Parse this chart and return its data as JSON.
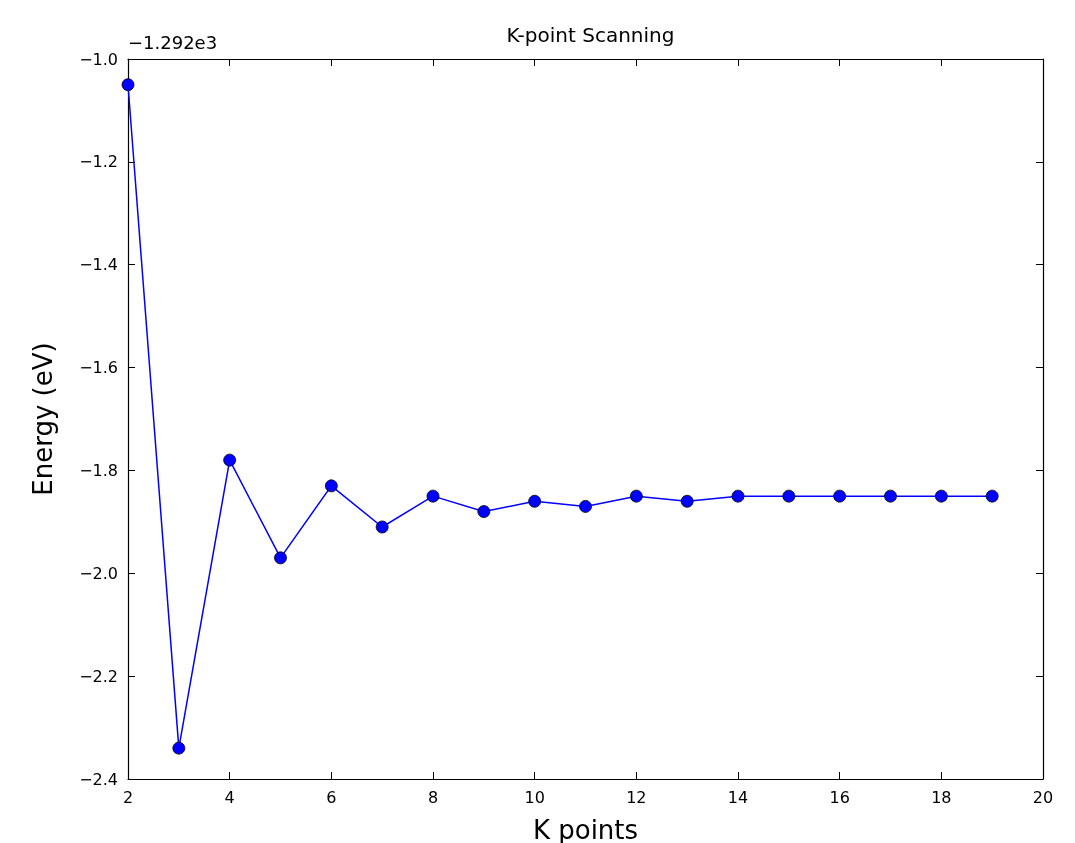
{
  "chart_data": {
    "type": "line",
    "title": "K-point Scanning",
    "xlabel": "K points",
    "ylabel": "Energy (eV)",
    "annotations": [
      "−1.292e3"
    ],
    "x": [
      2,
      3,
      4,
      5,
      6,
      7,
      8,
      9,
      10,
      11,
      12,
      13,
      14,
      15,
      16,
      17,
      18,
      19
    ],
    "series": [
      {
        "color": "#0000ff",
        "values": [
          -1.05,
          -2.34,
          -1.78,
          -1.97,
          -1.83,
          -1.91,
          -1.85,
          -1.88,
          -1.86,
          -1.87,
          -1.85,
          -1.86,
          -1.85,
          -1.85,
          -1.85,
          -1.85,
          -1.85,
          -1.85
        ]
      }
    ],
    "xlim": [
      2,
      20
    ],
    "xticks": [
      2,
      4,
      6,
      8,
      10,
      12,
      14,
      16,
      18,
      20
    ],
    "ylim": [
      -2.4,
      -1.0
    ],
    "yticks": [
      -2.4,
      -2.2,
      {
        "value": -2.0,
        "label": "−2.0"
      },
      -1.8,
      -1.6,
      -1.4,
      -1.2,
      {
        "value": -1.0,
        "label": "−1.0"
      }
    ],
    "grid": false,
    "marker": "circle",
    "line_style": "solid"
  }
}
